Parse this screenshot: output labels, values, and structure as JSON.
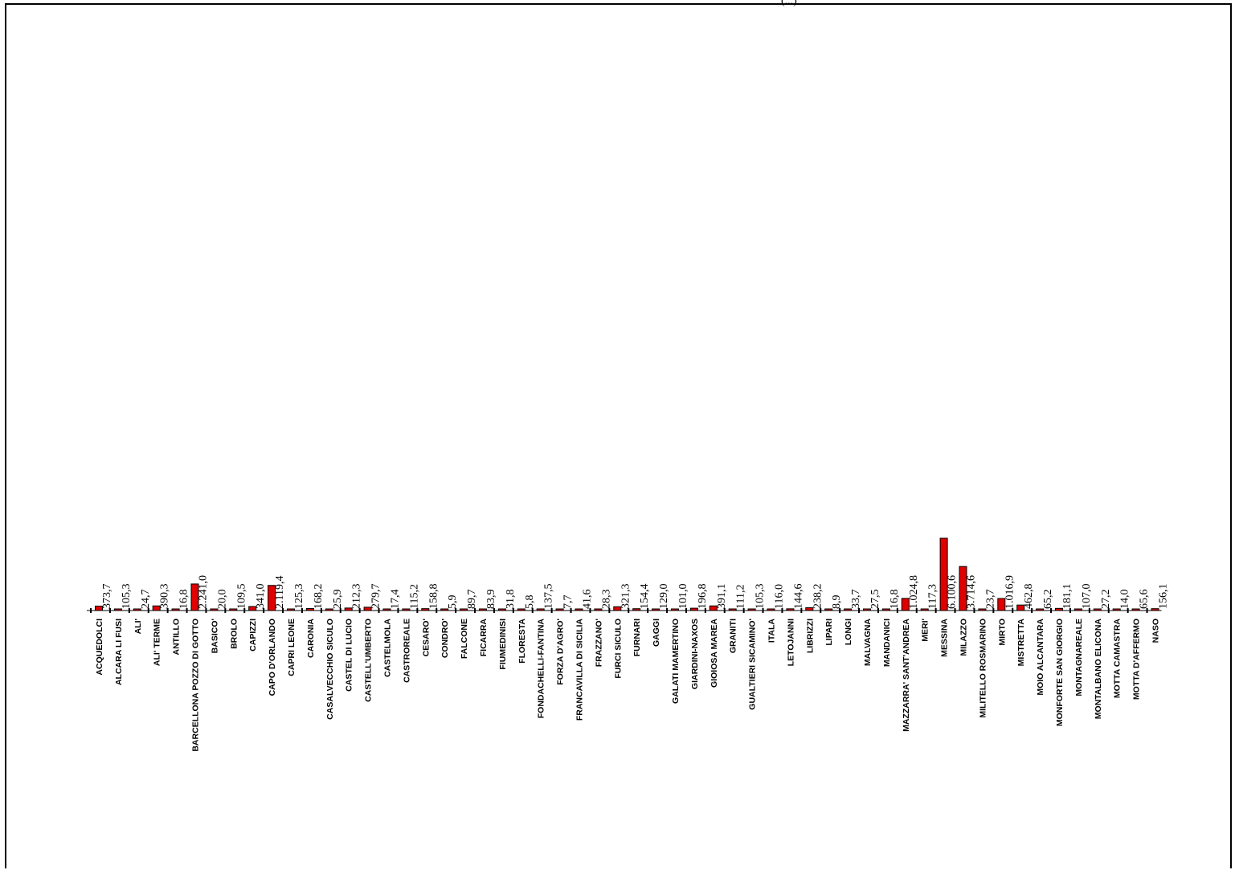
{
  "header": {
    "partial_title": "(...)"
  },
  "chart_data": {
    "type": "bar",
    "title": "",
    "xlabel": "",
    "ylabel": "",
    "bar_color": "#e00000",
    "categories": [
      "ACQUEDOLCI",
      "ALCARA LI FUSI",
      "ALI'",
      "ALI' TERME",
      "ANTILLO",
      "BARCELLONA POZZO DI GOTTO",
      "BASICO'",
      "BROLO",
      "CAPIZZI",
      "CAPO D'ORLANDO",
      "CAPRI LEONE",
      "CARONIA",
      "CASALVECCHIO SICULO",
      "CASTEL DI LUCIO",
      "CASTELL'UMBERTO",
      "CASTELMOLA",
      "CASTROREALE",
      "CESARO'",
      "CONDRO'",
      "FALCONE",
      "FICARRA",
      "FIUMEDINISI",
      "FLORESTA",
      "FONDACHELLI-FANTINA",
      "FORZA D'AGRO'",
      "FRANCAVILLA DI SICILIA",
      "FRAZZANO'",
      "FURCI SICULO",
      "FURNARI",
      "GAGGI",
      "GALATI MAMERTINO",
      "GIARDINI-NAXOS",
      "GIOIOSA MAREA",
      "GRANITI",
      "GUALTIERI SICAMINO'",
      "ITALA",
      "LETOJANNI",
      "LIBRIZZI",
      "LIPARI",
      "LONGI",
      "MALVAGNA",
      "MANDANICI",
      "MAZZARRA' SANT'ANDREA",
      "MERI'",
      "MESSINA",
      "MILAZZO",
      "MILITELLO ROSMARINO",
      "MIRTO",
      "MISTRETTA",
      "MOIO ALCANTARA",
      "MONFORTE SAN GIORGIO",
      "MONTAGNAREALE",
      "MONTALBANO ELICONA",
      "MOTTA CAMASTRA",
      "MOTTA D'AFFERMO",
      "NASO"
    ],
    "values": [
      373.7,
      105.3,
      24.7,
      390.3,
      16.8,
      2241.0,
      20.0,
      109.5,
      341.0,
      2119.4,
      125.3,
      168.2,
      25.9,
      212.3,
      279.7,
      17.4,
      115.2,
      158.8,
      5.9,
      89.7,
      83.9,
      31.8,
      5.8,
      137.5,
      7.7,
      41.6,
      28.3,
      321.3,
      154.4,
      129.0,
      101.0,
      196.8,
      391.1,
      111.2,
      105.3,
      116.0,
      144.6,
      238.2,
      8.9,
      33.7,
      27.5,
      16.8,
      1024.8,
      117.3,
      6100.6,
      3714.6,
      23.7,
      1016.9,
      462.8,
      65.2,
      181.1,
      107.0,
      27.2,
      14.0,
      65.6,
      156.1
    ],
    "value_labels": [
      "373,7",
      "105,3",
      "24,7",
      "390,3",
      "16,8",
      "2.241,0",
      "20,0",
      "109,5",
      "341,0",
      "2.119,4",
      "125,3",
      "168,2",
      "25,9",
      "212,3",
      "279,7",
      "17,4",
      "115,2",
      "158,8",
      "5,9",
      "89,7",
      "83,9",
      "31,8",
      "5,8",
      "137,5",
      "7,7",
      "41,6",
      "28,3",
      "321,3",
      "154,4",
      "129,0",
      "101,0",
      "196,8",
      "391,1",
      "111,2",
      "105,3",
      "116,0",
      "144,6",
      "238,2",
      "8,9",
      "33,7",
      "27,5",
      "16,8",
      "1.024,8",
      "117,3",
      "6.100,6",
      "3.714,6",
      "23,7",
      "1.016,9",
      "462,8",
      "65,2",
      "181,1",
      "107,0",
      "27,2",
      "14,0",
      "65,6",
      "156,1"
    ],
    "ylim": [
      0,
      6100.6
    ],
    "grid": false,
    "legend": "none"
  }
}
